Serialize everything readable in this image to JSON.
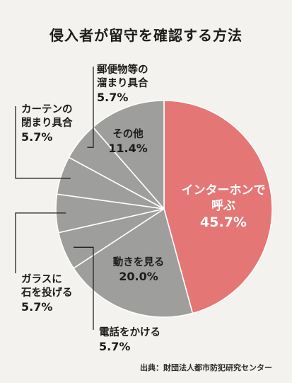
{
  "chart_data": {
    "type": "pie",
    "title": "侵入者が留守を確認する方法",
    "slices": [
      {
        "name": "インターホンで呼ぶ",
        "name_lines": [
          "インターホンで",
          "呼ぶ"
        ],
        "value": 45.7,
        "value_label": "45.7%",
        "color": "#e57676",
        "label_position": "inside"
      },
      {
        "name": "動きを見る",
        "name_lines": [
          "動きを見る"
        ],
        "value": 20.0,
        "value_label": "20.0%",
        "color": "#9e9e9c",
        "label_position": "inside"
      },
      {
        "name": "電話をかける",
        "name_lines": [
          "電話をかける"
        ],
        "value": 5.7,
        "value_label": "5.7%",
        "color": "#9e9e9c",
        "label_position": "outside"
      },
      {
        "name": "ガラスに石を投げる",
        "name_lines": [
          "ガラスに",
          "石を投げる"
        ],
        "value": 5.7,
        "value_label": "5.7%",
        "color": "#9e9e9c",
        "label_position": "outside"
      },
      {
        "name": "カーテンの閉まり具合",
        "name_lines": [
          "カーテンの",
          "閉まり具合"
        ],
        "value": 5.7,
        "value_label": "5.7%",
        "color": "#9e9e9c",
        "label_position": "outside"
      },
      {
        "name": "郵便物等の溜まり具合",
        "name_lines": [
          "郵便物等の",
          "溜まり具合"
        ],
        "value": 5.7,
        "value_label": "5.7%",
        "color": "#9e9e9c",
        "label_position": "outside"
      },
      {
        "name": "その他",
        "name_lines": [
          "その他"
        ],
        "value": 11.4,
        "value_label": "11.4%",
        "color": "#9e9e9c",
        "label_position": "inside"
      }
    ],
    "direction": "clockwise",
    "start": "12 o'clock",
    "slice_border_color": "#ffffff",
    "leader_color": "#222222",
    "background_color": "#f3f2ee"
  },
  "source": "出典：財団法人都市防犯研究センター"
}
